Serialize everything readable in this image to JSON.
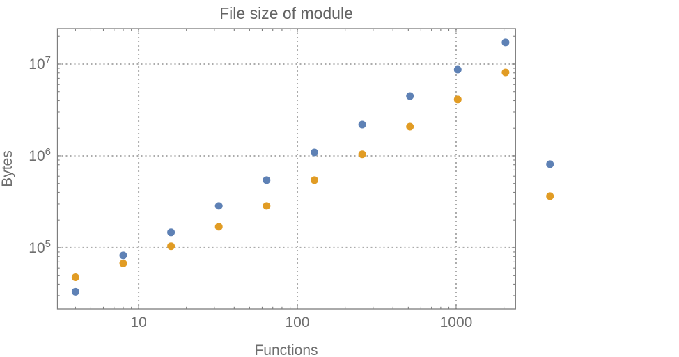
{
  "chart_data": {
    "type": "scatter",
    "title": "File size of module",
    "xlabel": "Functions",
    "ylabel": "Bytes",
    "xscale": "log",
    "yscale": "log",
    "xlim": [
      3.08,
      2368
    ],
    "ylim": [
      21500,
      24340000
    ],
    "grid": "dotted-at-decades",
    "legend": "none",
    "plot_range_clipping": false,
    "x_tick_labels": [
      {
        "value": 10,
        "label": "10"
      },
      {
        "value": 100,
        "label": "100"
      },
      {
        "value": 1000,
        "label": "1000"
      }
    ],
    "y_tick_labels": [
      {
        "value": 100000,
        "base": "10",
        "exp": "5"
      },
      {
        "value": 1000000,
        "base": "10",
        "exp": "6"
      },
      {
        "value": 10000000,
        "base": "10",
        "exp": "7"
      }
    ],
    "x": [
      4,
      8,
      16,
      32,
      64,
      128,
      256,
      512,
      1024,
      2048,
      3900
    ],
    "series": [
      {
        "name": "series-1-blue",
        "color": "#5E81B5",
        "values": [
          33000,
          82500,
          147000,
          285000,
          543000,
          1090000,
          2190000,
          4480000,
          8700000,
          17200000,
          811000
        ]
      },
      {
        "name": "series-2-orange",
        "color": "#E19C24",
        "values": [
          47600,
          67500,
          104000,
          169000,
          285000,
          543000,
          1040000,
          2080000,
          4110000,
          8110000,
          364000
        ]
      }
    ],
    "colors": {
      "grid": "#ababab",
      "frame": "#7d7d7d",
      "text": "#6e6e6e",
      "title": "#636363"
    }
  }
}
